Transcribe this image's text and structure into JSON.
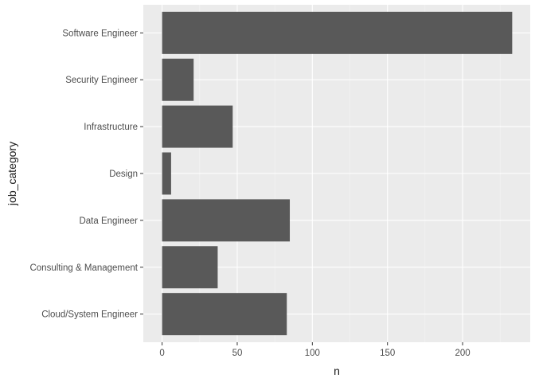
{
  "chart_data": {
    "type": "bar",
    "orientation": "horizontal",
    "categories": [
      "Software Engineer",
      "Security Engineer",
      "Infrastructure",
      "Design",
      "Data Engineer",
      "Consulting & Management",
      "Cloud/System Engineer"
    ],
    "values": [
      233,
      21,
      47,
      6,
      85,
      37,
      83
    ],
    "xlabel": "n",
    "ylabel": "job_category",
    "xlim": [
      -12.5,
      245
    ],
    "x_ticks": [
      0,
      50,
      100,
      150,
      200
    ],
    "grid": true,
    "legend": "none",
    "colors": {
      "bar": "#595959",
      "panel": "#ebebeb",
      "grid_major": "#ffffff",
      "tick_text": "#4d4d4d",
      "tick_mark": "#333333"
    }
  }
}
